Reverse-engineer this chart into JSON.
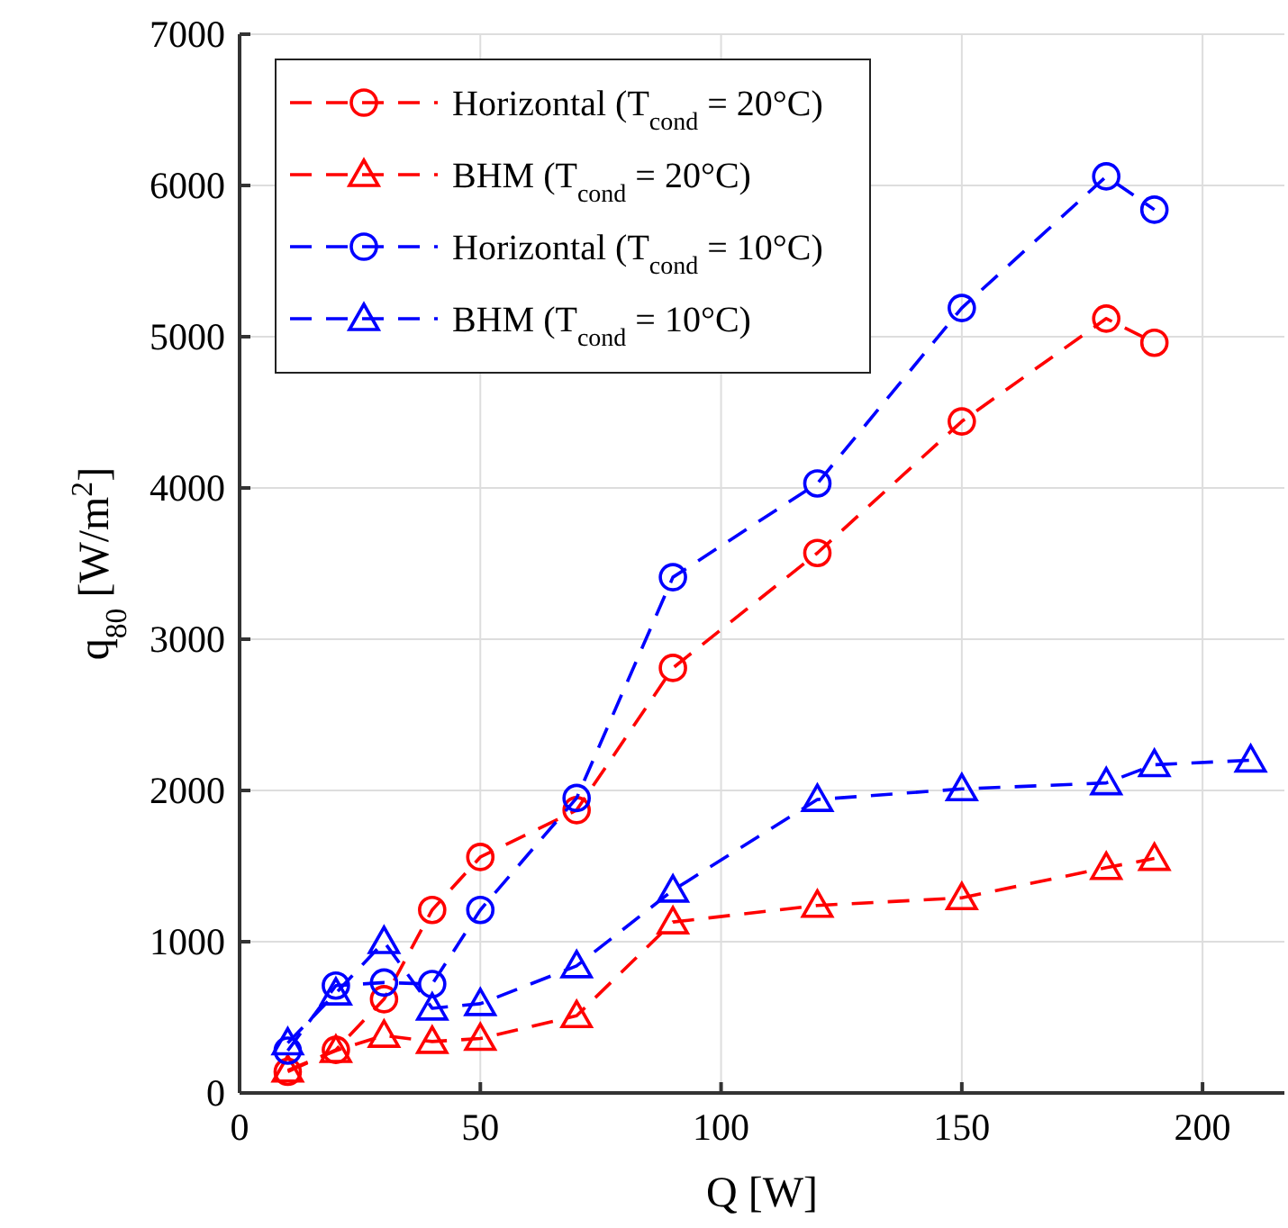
{
  "chart_data": {
    "type": "line",
    "xlabel": "Q [W]",
    "ylabel": "q$_{80}$ [W/m$^{2}$]",
    "xlim": [
      0,
      217
    ],
    "xticks": [
      0,
      50,
      100,
      150,
      200
    ],
    "ylim": [
      0,
      7000
    ],
    "yticks": [
      0,
      1000,
      2000,
      3000,
      4000,
      5000,
      6000,
      7000
    ],
    "grid": true,
    "legend": "top left",
    "line_style": "dashed",
    "x": [
      10,
      20,
      30,
      40,
      50,
      70,
      90,
      120,
      150,
      180,
      190
    ],
    "series": [
      {
        "name": "Horizontal (T$_{cond}$ = 20°C)",
        "color": "#ff0000",
        "marker": "circle",
        "values": [
          140,
          285,
          620,
          1210,
          1560,
          1870,
          2810,
          3570,
          4440,
          5120,
          4960
        ]
      },
      {
        "name": "BHM (T$_{cond}$ = 20°C)",
        "color": "#ff0000",
        "marker": "triangle",
        "values": [
          150,
          280,
          380,
          340,
          360,
          510,
          1130,
          1240,
          1290,
          1490,
          1550
        ]
      },
      {
        "name": "Horizontal (T$_{cond}$ = 10°C)",
        "color": "#0000ff",
        "marker": "circle",
        "values": [
          280,
          710,
          730,
          720,
          1210,
          1950,
          3410,
          4030,
          5190,
          6060,
          5840
        ]
      },
      {
        "name": "BHM (T$_{cond}$ = 10°C)",
        "color": "#0000ff",
        "marker": "triangle",
        "x": [
          10,
          20,
          30,
          40,
          50,
          70,
          90,
          120,
          150,
          180,
          190,
          210
        ],
        "values": [
          330,
          660,
          1000,
          560,
          590,
          840,
          1340,
          1940,
          2010,
          2050,
          2170,
          2200
        ]
      }
    ]
  }
}
